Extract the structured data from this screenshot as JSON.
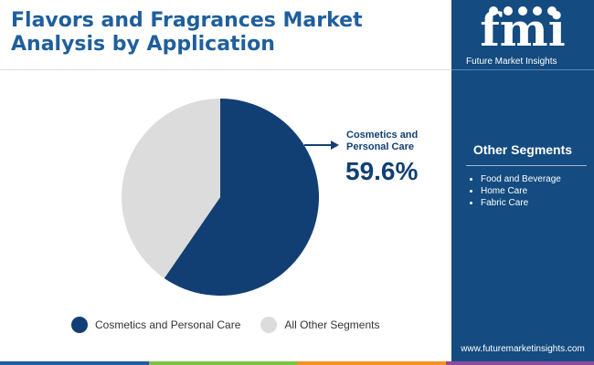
{
  "title_lines": [
    "Flavors and Fragrances Market",
    "Analysis by Application"
  ],
  "brand": {
    "logo_letters": "fmi",
    "name": "Future Market Insights",
    "website": "www.futuremarketinsights.com"
  },
  "sidebar": {
    "heading": "Other Segments",
    "items": [
      "Food and Beverage",
      "Home Care",
      "Fabric Care"
    ]
  },
  "callout": {
    "label_lines": [
      "Cosmetics and",
      "Personal Care"
    ],
    "value": "59.6%"
  },
  "legend": {
    "items": [
      "Cosmetics and Personal Care",
      "All Other Segments"
    ]
  },
  "colors": {
    "primary": "#123f73",
    "secondary": "#dcdcdc",
    "sidebar": "#144b80",
    "bottom_bar": [
      "#1f5f9c",
      "#7cc242",
      "#f29222",
      "#8a4c9c"
    ]
  },
  "chart_data": {
    "type": "pie",
    "slices": [
      {
        "label": "Cosmetics and Personal Care",
        "value": 59.6,
        "color": "#123f73"
      },
      {
        "label": "All Other Segments",
        "value": 40.4,
        "color": "#dcdcdc"
      }
    ]
  }
}
